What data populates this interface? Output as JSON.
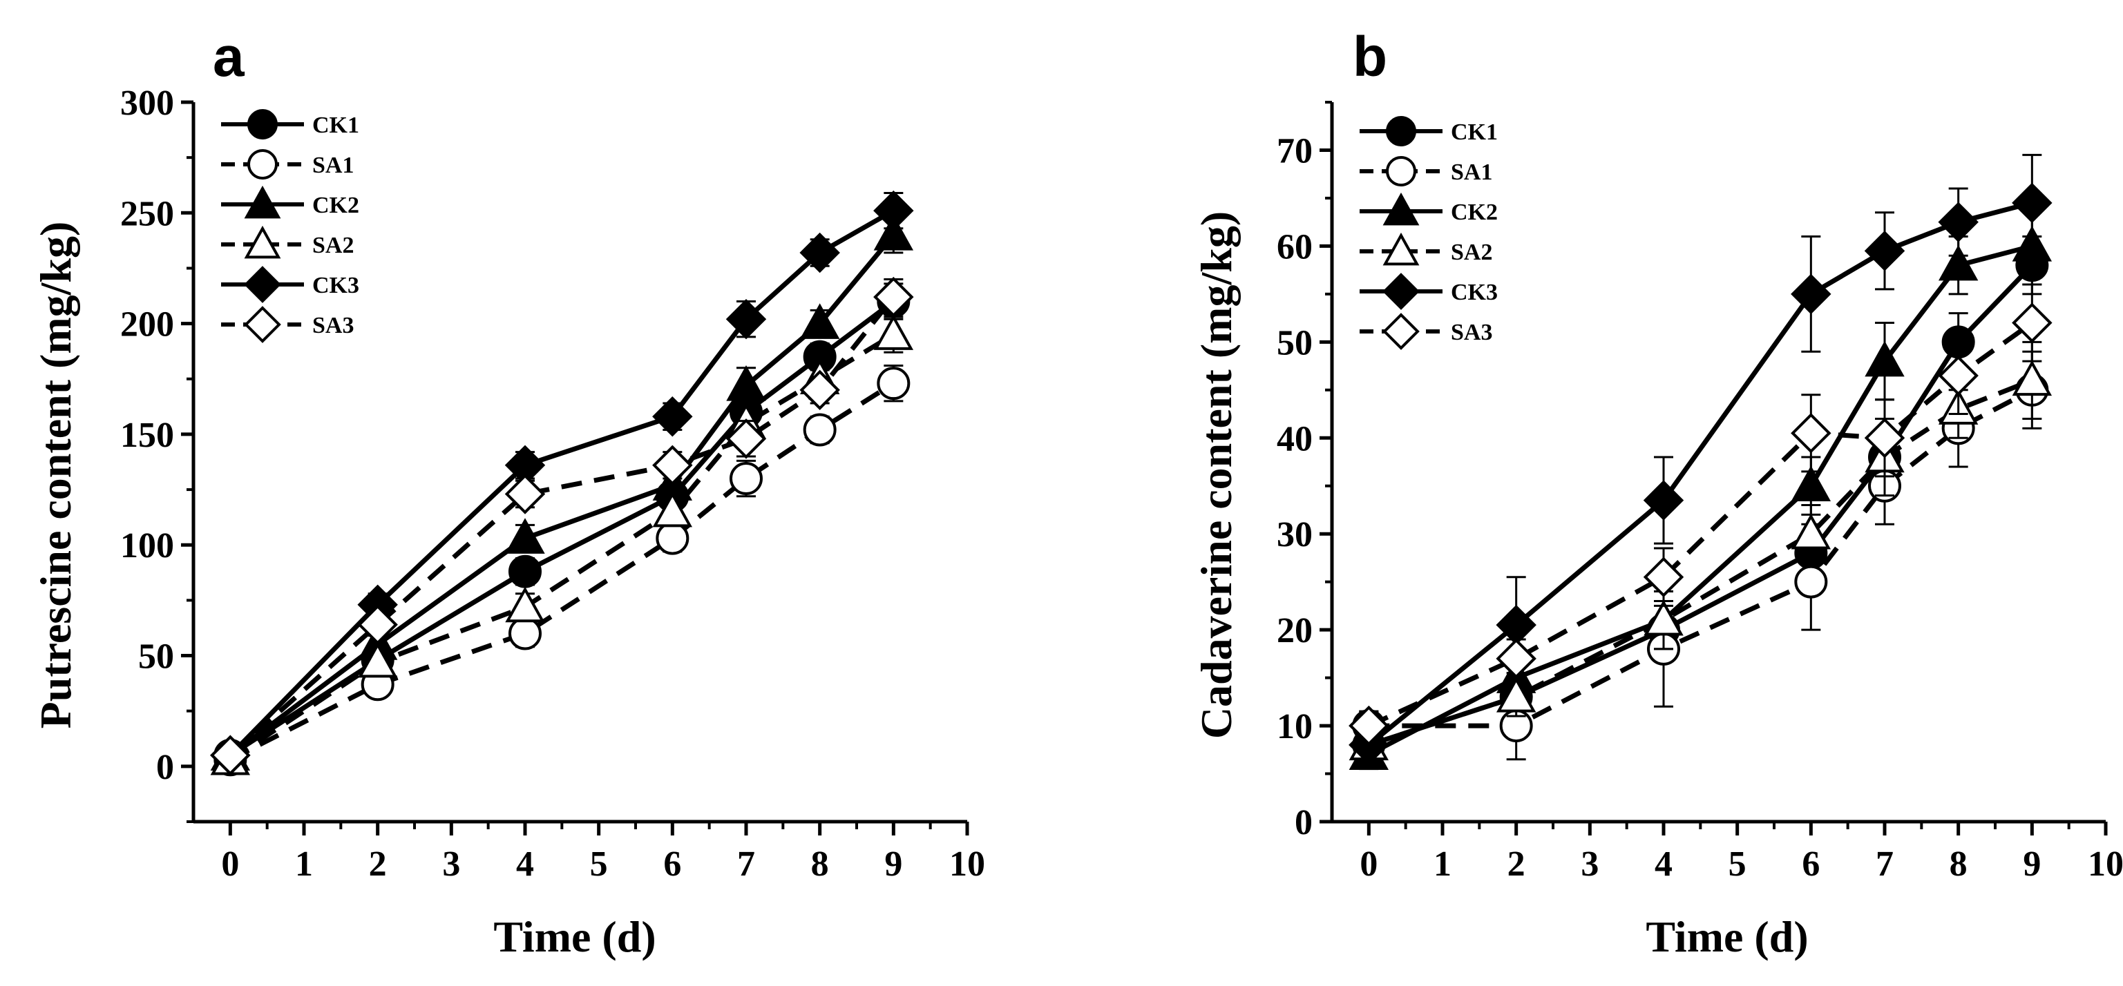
{
  "figure": {
    "panels": [
      "a",
      "b"
    ]
  },
  "legend_labels": [
    "CK1",
    "SA1",
    "CK2",
    "SA2",
    "CK3",
    "SA3"
  ],
  "chart_data": [
    {
      "type": "line",
      "panel": "a",
      "title": "",
      "xlabel": "Time (d)",
      "ylabel": "Putrescine content (mg/kg)",
      "xlim": [
        -0.5,
        10
      ],
      "ylim": [
        -25,
        300
      ],
      "xticks": [
        0,
        1,
        2,
        3,
        4,
        5,
        6,
        7,
        8,
        9,
        10
      ],
      "yticks": [
        0,
        50,
        100,
        150,
        200,
        250,
        300
      ],
      "legend_position": "top-left",
      "x": [
        0,
        2,
        4,
        6,
        7,
        8,
        9
      ],
      "series": [
        {
          "name": "CK1",
          "marker": "circle",
          "fill": "filled",
          "dash": "solid",
          "values": [
            5,
            48,
            88,
            122,
            160,
            185,
            210
          ],
          "errors": [
            3,
            5,
            6,
            6,
            8,
            6,
            8
          ]
        },
        {
          "name": "SA1",
          "marker": "circle",
          "fill": "open",
          "dash": "dashed",
          "values": [
            3,
            37,
            60,
            103,
            130,
            152,
            173
          ],
          "errors": [
            3,
            5,
            6,
            6,
            8,
            6,
            8
          ]
        },
        {
          "name": "CK2",
          "marker": "triangle",
          "fill": "filled",
          "dash": "solid",
          "values": [
            5,
            55,
            103,
            127,
            172,
            200,
            240
          ],
          "errors": [
            3,
            5,
            6,
            6,
            8,
            6,
            8
          ]
        },
        {
          "name": "SA2",
          "marker": "triangle",
          "fill": "open",
          "dash": "dashed",
          "values": [
            3,
            47,
            72,
            115,
            155,
            175,
            195
          ],
          "errors": [
            3,
            5,
            6,
            6,
            8,
            6,
            8
          ]
        },
        {
          "name": "CK3",
          "marker": "diamond",
          "fill": "filled",
          "dash": "solid",
          "values": [
            5,
            73,
            136,
            158,
            202,
            232,
            251
          ],
          "errors": [
            3,
            5,
            6,
            6,
            8,
            6,
            8
          ]
        },
        {
          "name": "SA3",
          "marker": "diamond",
          "fill": "open",
          "dash": "dashed",
          "values": [
            5,
            64,
            123,
            136,
            148,
            170,
            212
          ],
          "errors": [
            3,
            5,
            6,
            6,
            8,
            6,
            8
          ]
        }
      ]
    },
    {
      "type": "line",
      "panel": "b",
      "title": "",
      "xlabel": "Time (d)",
      "ylabel": "Cadaverine content (mg/kg)",
      "xlim": [
        -0.5,
        10
      ],
      "ylim": [
        0,
        75
      ],
      "xticks": [
        0,
        1,
        2,
        3,
        4,
        5,
        6,
        7,
        8,
        9,
        10
      ],
      "yticks": [
        0,
        10,
        20,
        30,
        40,
        50,
        60,
        70
      ],
      "legend_position": "top-left",
      "x": [
        0,
        2,
        4,
        6,
        7,
        8,
        9
      ],
      "series": [
        {
          "name": "CK1",
          "marker": "circle",
          "fill": "filled",
          "dash": "solid",
          "values": [
            8,
            13,
            20,
            28,
            38,
            50,
            58
          ],
          "errors": [
            1.5,
            2,
            3,
            3,
            3,
            3,
            3
          ]
        },
        {
          "name": "SA1",
          "marker": "circle",
          "fill": "open",
          "dash": "dashed",
          "values": [
            10,
            10,
            18,
            25,
            35,
            41,
            45
          ],
          "errors": [
            1.5,
            3.5,
            6,
            5,
            4,
            4,
            4
          ]
        },
        {
          "name": "CK2",
          "marker": "triangle",
          "fill": "filled",
          "dash": "solid",
          "values": [
            7,
            15,
            21,
            35,
            48,
            58,
            60
          ],
          "errors": [
            1.5,
            2,
            3,
            3,
            4,
            3,
            4
          ]
        },
        {
          "name": "SA2",
          "marker": "triangle",
          "fill": "open",
          "dash": "dashed",
          "values": [
            8,
            13,
            21,
            30,
            38,
            43,
            46
          ],
          "errors": [
            1.5,
            2,
            3,
            3,
            4,
            3,
            4
          ]
        },
        {
          "name": "CK3",
          "marker": "diamond",
          "fill": "filled",
          "dash": "solid",
          "values": [
            8,
            20.5,
            33.5,
            55,
            59.5,
            62.5,
            64.5
          ],
          "errors": [
            1.5,
            5,
            4.5,
            6,
            4,
            3.5,
            5
          ]
        },
        {
          "name": "SA3",
          "marker": "diamond",
          "fill": "open",
          "dash": "dashed",
          "values": [
            10,
            17,
            25.5,
            40.5,
            40,
            46.5,
            52
          ],
          "errors": [
            1.5,
            2,
            3,
            4,
            4,
            4,
            4
          ]
        }
      ]
    }
  ]
}
